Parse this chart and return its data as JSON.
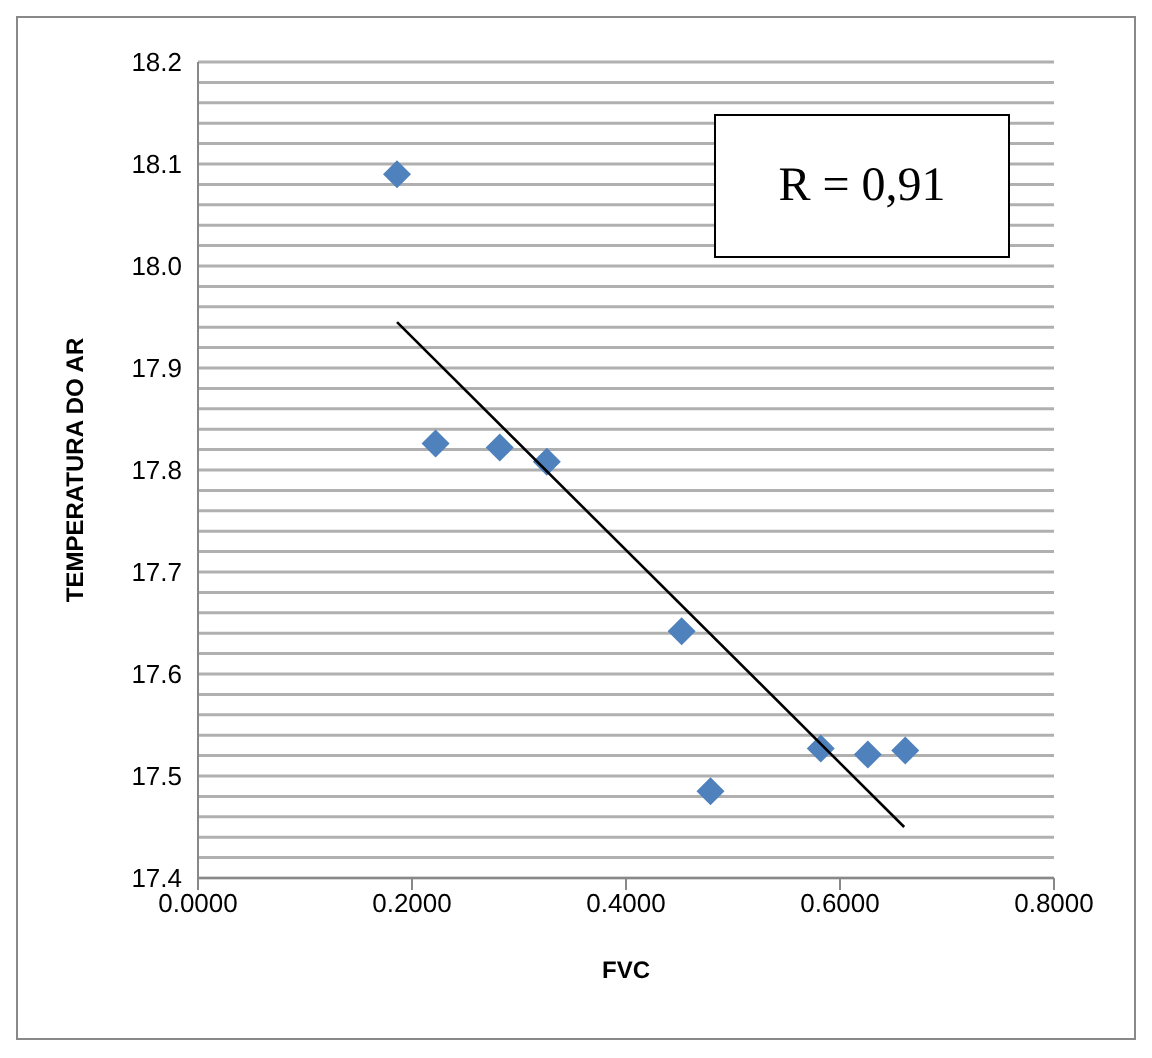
{
  "chart_data": {
    "type": "scatter",
    "xlabel": "FVC",
    "ylabel": "TEMPERATURA  DO AR",
    "annotations": [
      "R = 0,91"
    ],
    "marker": "diamond",
    "grid": "y",
    "legend": false,
    "xlim": [
      0,
      0.8
    ],
    "xticks": [
      {
        "value": 0,
        "label": "0.0000"
      },
      {
        "value": 0.2,
        "label": "0.2000"
      },
      {
        "value": 0.4,
        "label": "0.4000"
      },
      {
        "value": 0.6,
        "label": "0.6000"
      },
      {
        "value": 0.8,
        "label": "0.8000"
      }
    ],
    "ylim": [
      17.4,
      18.2
    ],
    "yticks": [
      {
        "value": 17.4,
        "label": "17.4"
      },
      {
        "value": 17.42,
        "label": null
      },
      {
        "value": 17.44,
        "label": null
      },
      {
        "value": 17.46,
        "label": null
      },
      {
        "value": 17.48,
        "label": null
      },
      {
        "value": 17.5,
        "label": "17.5"
      },
      {
        "value": 17.52,
        "label": null
      },
      {
        "value": 17.54,
        "label": null
      },
      {
        "value": 17.56,
        "label": null
      },
      {
        "value": 17.58,
        "label": null
      },
      {
        "value": 17.6,
        "label": "17.6"
      },
      {
        "value": 17.62,
        "label": null
      },
      {
        "value": 17.64,
        "label": null
      },
      {
        "value": 17.66,
        "label": null
      },
      {
        "value": 17.68,
        "label": null
      },
      {
        "value": 17.7,
        "label": "17.7"
      },
      {
        "value": 17.72,
        "label": null
      },
      {
        "value": 17.74,
        "label": null
      },
      {
        "value": 17.76,
        "label": null
      },
      {
        "value": 17.78,
        "label": null
      },
      {
        "value": 17.8,
        "label": "17.8"
      },
      {
        "value": 17.82,
        "label": null
      },
      {
        "value": 17.84,
        "label": null
      },
      {
        "value": 17.86,
        "label": null
      },
      {
        "value": 17.88,
        "label": null
      },
      {
        "value": 17.9,
        "label": "17.9"
      },
      {
        "value": 17.92,
        "label": null
      },
      {
        "value": 17.94,
        "label": null
      },
      {
        "value": 17.96,
        "label": null
      },
      {
        "value": 17.98,
        "label": null
      },
      {
        "value": 18.0,
        "label": "18.0"
      },
      {
        "value": 18.02,
        "label": null
      },
      {
        "value": 18.04,
        "label": null
      },
      {
        "value": 18.06,
        "label": null
      },
      {
        "value": 18.08,
        "label": null
      },
      {
        "value": 18.1,
        "label": "18.1"
      },
      {
        "value": 18.12,
        "label": null
      },
      {
        "value": 18.14,
        "label": null
      },
      {
        "value": 18.16,
        "label": null
      },
      {
        "value": 18.18,
        "label": null
      },
      {
        "value": 18.2,
        "label": "18.2"
      }
    ],
    "series": [
      {
        "color": "#4f81bd",
        "x": [
          0.186,
          0.222,
          0.282,
          0.326,
          0.452,
          0.479,
          0.582,
          0.626,
          0.661
        ],
        "values": [
          18.09,
          17.826,
          17.822,
          17.808,
          17.642,
          17.485,
          17.527,
          17.521,
          17.525
        ]
      },
      {
        "type": "line",
        "color": "#000000",
        "marker": "none",
        "x": [
          0.186,
          0.66
        ],
        "values": [
          17.945,
          17.45
        ]
      }
    ]
  }
}
